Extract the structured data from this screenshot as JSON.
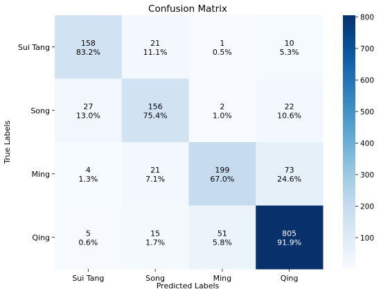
{
  "chart_data": {
    "type": "heatmap",
    "title": "Confusion Matrix",
    "xlabel": "Predicted Labels",
    "ylabel": "True Labels",
    "x_categories": [
      "Sui Tang",
      "Song",
      "Ming",
      "Qing"
    ],
    "y_categories": [
      "Sui Tang",
      "Song",
      "Ming",
      "Qing"
    ],
    "values": [
      [
        158,
        21,
        1,
        10
      ],
      [
        27,
        156,
        2,
        22
      ],
      [
        4,
        21,
        199,
        73
      ],
      [
        5,
        15,
        51,
        805
      ]
    ],
    "percent_labels": [
      [
        "83.2%",
        "11.1%",
        "0.5%",
        "5.3%"
      ],
      [
        "13.0%",
        "75.4%",
        "1.0%",
        "10.6%"
      ],
      [
        "1.3%",
        "7.1%",
        "67.0%",
        "24.6%"
      ],
      [
        "0.6%",
        "1.7%",
        "5.8%",
        "91.9%"
      ]
    ],
    "colormap": "Blues",
    "colorbar": {
      "min": 1,
      "max": 805,
      "ticks": [
        100,
        200,
        300,
        400,
        500,
        600,
        700,
        800
      ]
    }
  }
}
